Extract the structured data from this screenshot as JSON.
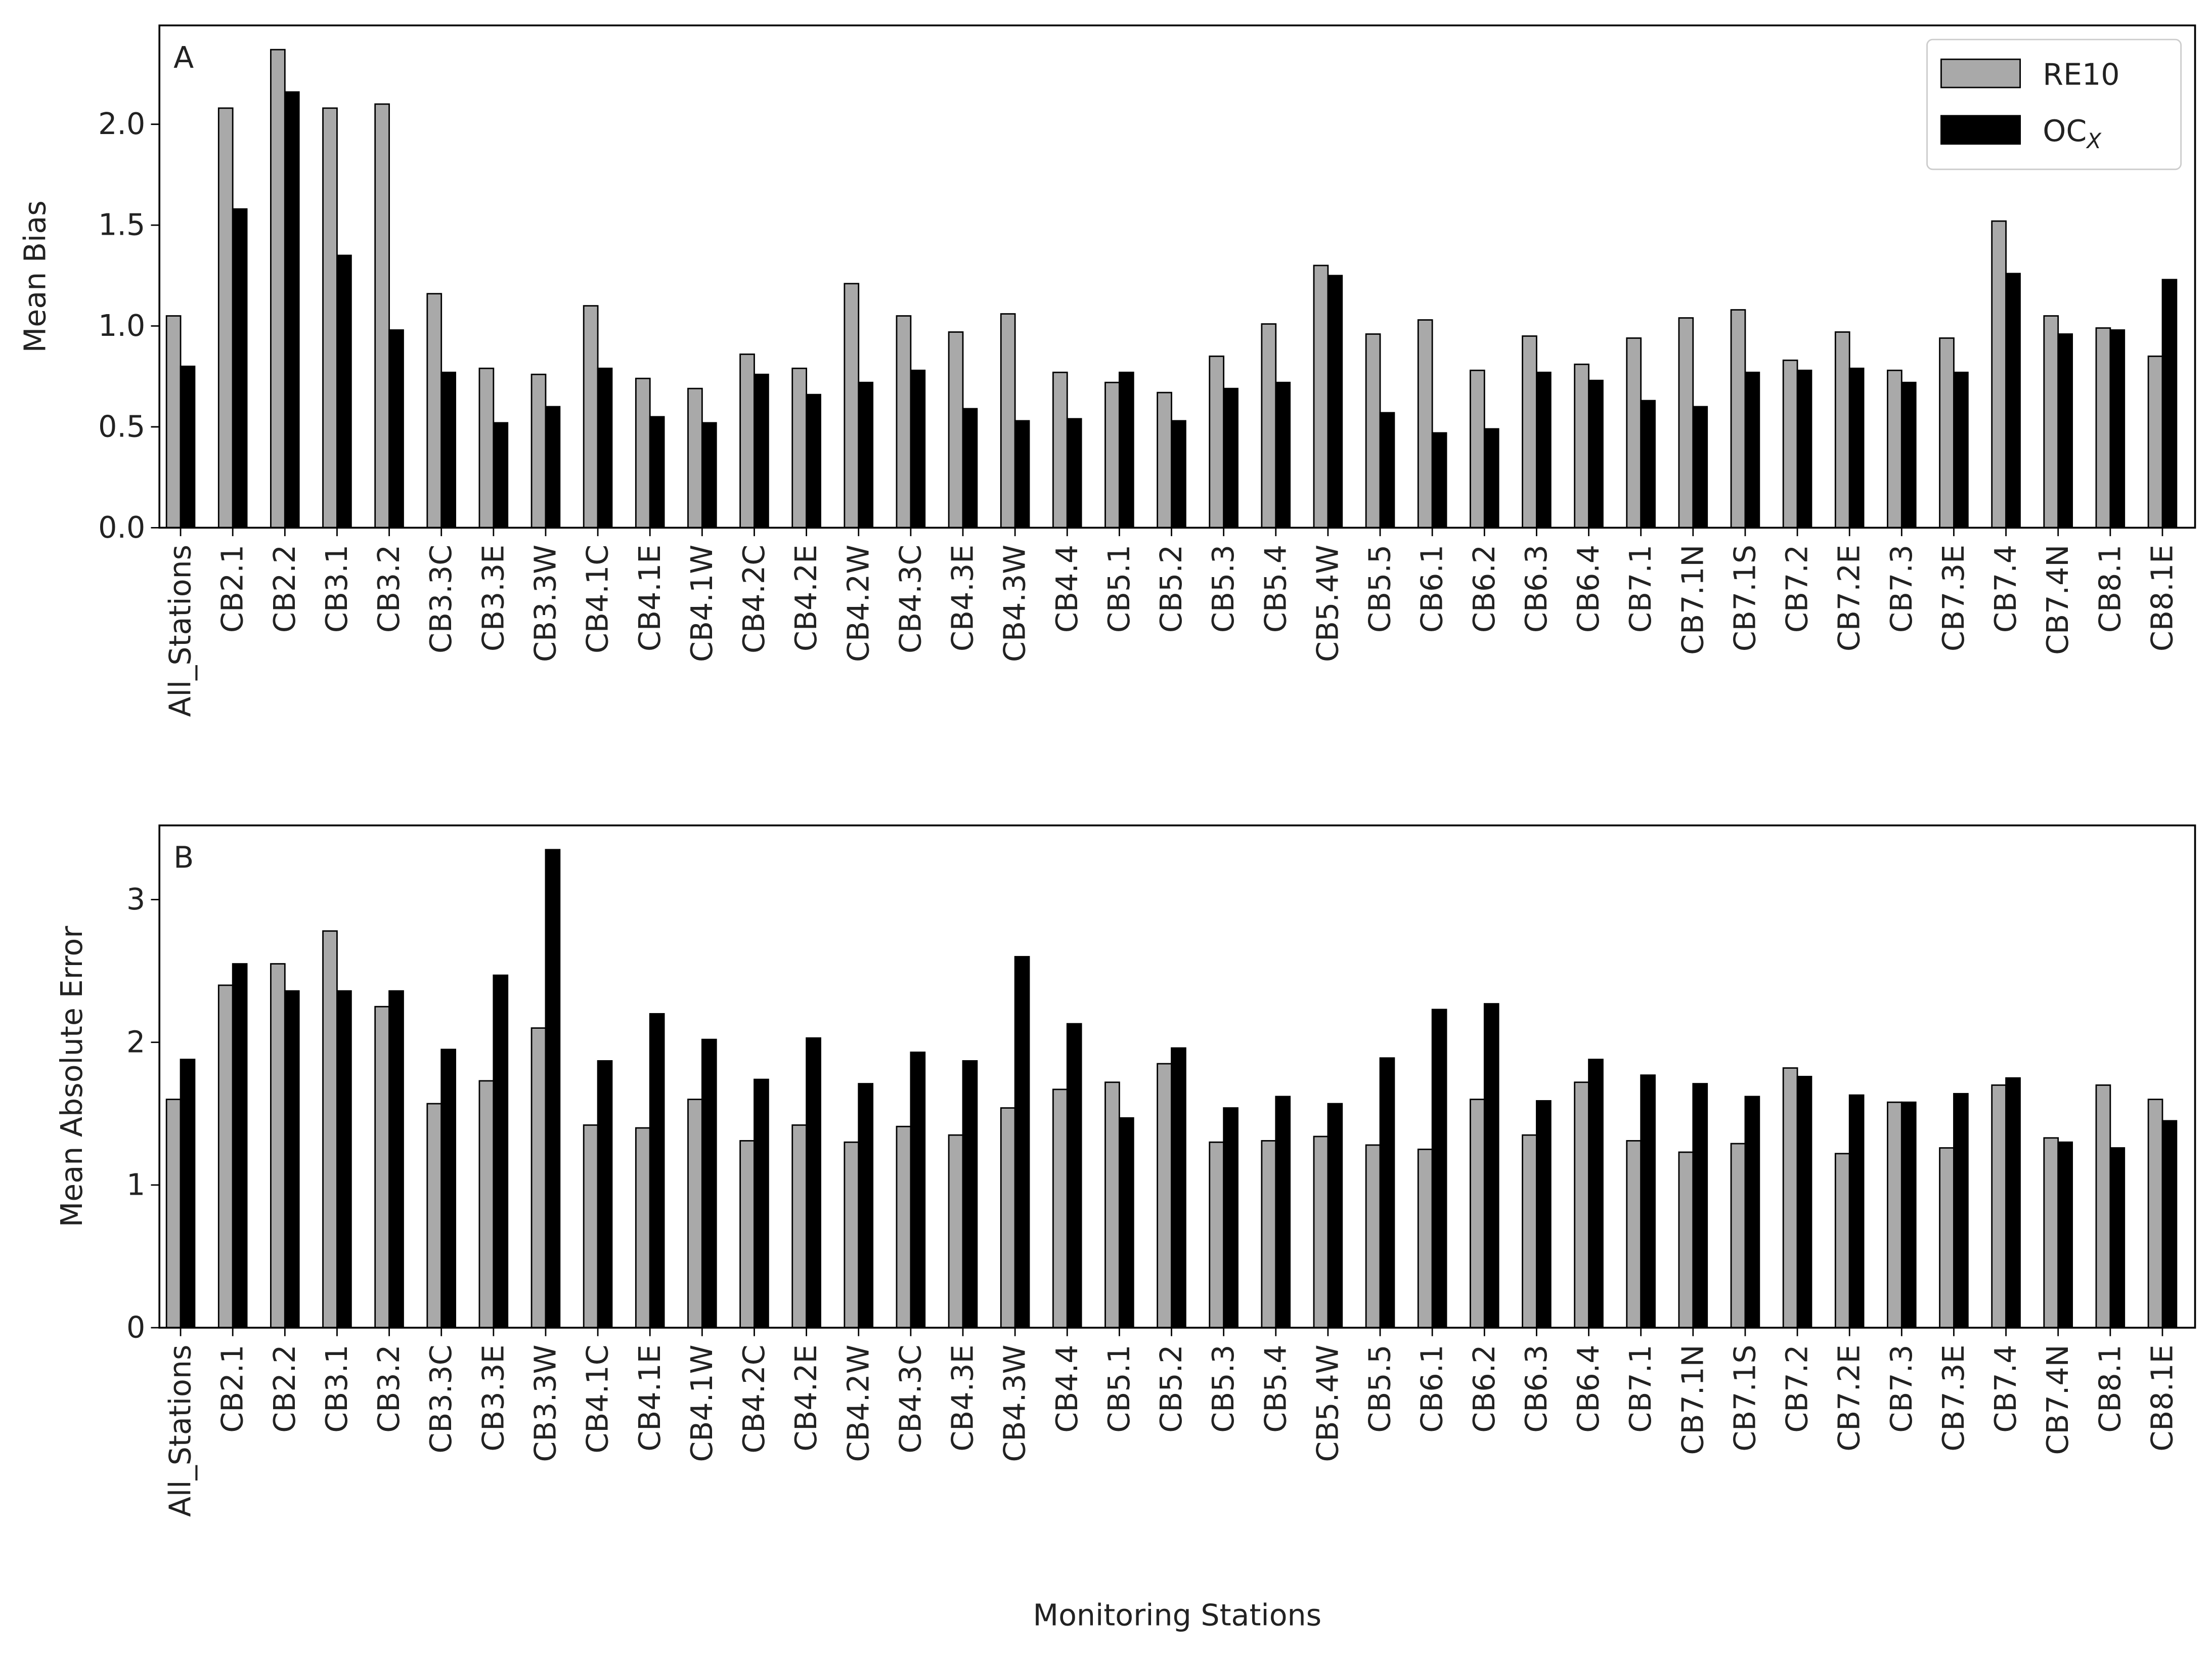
{
  "chart_data": [
    {
      "type": "bar",
      "panel_label": "A",
      "ylabel": "Mean Bias",
      "categories": [
        "All_Stations",
        "CB2.1",
        "CB2.2",
        "CB3.1",
        "CB3.2",
        "CB3.3C",
        "CB3.3E",
        "CB3.3W",
        "CB4.1C",
        "CB4.1E",
        "CB4.1W",
        "CB4.2C",
        "CB4.2E",
        "CB4.2W",
        "CB4.3C",
        "CB4.3E",
        "CB4.3W",
        "CB4.4",
        "CB5.1",
        "CB5.2",
        "CB5.3",
        "CB5.4",
        "CB5.4W",
        "CB5.5",
        "CB6.1",
        "CB6.2",
        "CB6.3",
        "CB6.4",
        "CB7.1",
        "CB7.1N",
        "CB7.1S",
        "CB7.2",
        "CB7.2E",
        "CB7.3",
        "CB7.3E",
        "CB7.4",
        "CB7.4N",
        "CB8.1",
        "CB8.1E"
      ],
      "series": [
        {
          "name": "RE10",
          "color": "#a9a9a9",
          "values": [
            1.05,
            2.08,
            2.37,
            2.08,
            2.1,
            1.16,
            0.79,
            0.76,
            1.1,
            0.74,
            0.69,
            0.86,
            0.79,
            1.21,
            1.05,
            0.97,
            1.06,
            0.77,
            0.72,
            0.67,
            0.85,
            1.01,
            1.3,
            0.96,
            1.03,
            0.78,
            0.95,
            0.81,
            0.94,
            1.04,
            1.08,
            0.83,
            0.97,
            0.78,
            0.94,
            1.52,
            1.05,
            0.99,
            0.85
          ]
        },
        {
          "name": "OCX",
          "color": "#000000",
          "values": [
            0.8,
            1.58,
            2.16,
            1.35,
            0.98,
            0.77,
            0.52,
            0.6,
            0.79,
            0.55,
            0.52,
            0.76,
            0.66,
            0.72,
            0.78,
            0.59,
            0.53,
            0.54,
            0.77,
            0.53,
            0.69,
            0.72,
            1.25,
            0.57,
            0.47,
            0.49,
            0.77,
            0.73,
            0.63,
            0.6,
            0.77,
            0.78,
            0.79,
            0.72,
            0.77,
            1.26,
            0.96,
            0.98,
            1.23
          ]
        }
      ],
      "ylim": [
        0,
        2.49
      ],
      "yticks": [
        {
          "value": 0,
          "label": "0.0"
        },
        0.5,
        {
          "value": 1,
          "label": "1.0"
        },
        1.5,
        {
          "value": 2,
          "label": "2.0"
        }
      ],
      "legend": "upper right"
    },
    {
      "type": "bar",
      "panel_label": "B",
      "ylabel": "Mean Absolute Error",
      "xlabel": "Monitoring Stations",
      "categories": [
        "All_Stations",
        "CB2.1",
        "CB2.2",
        "CB3.1",
        "CB3.2",
        "CB3.3C",
        "CB3.3E",
        "CB3.3W",
        "CB4.1C",
        "CB4.1E",
        "CB4.1W",
        "CB4.2C",
        "CB4.2E",
        "CB4.2W",
        "CB4.3C",
        "CB4.3E",
        "CB4.3W",
        "CB4.4",
        "CB5.1",
        "CB5.2",
        "CB5.3",
        "CB5.4",
        "CB5.4W",
        "CB5.5",
        "CB6.1",
        "CB6.2",
        "CB6.3",
        "CB6.4",
        "CB7.1",
        "CB7.1N",
        "CB7.1S",
        "CB7.2",
        "CB7.2E",
        "CB7.3",
        "CB7.3E",
        "CB7.4",
        "CB7.4N",
        "CB8.1",
        "CB8.1E"
      ],
      "series": [
        {
          "name": "RE10",
          "color": "#a9a9a9",
          "values": [
            1.6,
            2.4,
            2.55,
            2.78,
            2.25,
            1.57,
            1.73,
            2.1,
            1.42,
            1.4,
            1.6,
            1.31,
            1.42,
            1.3,
            1.41,
            1.35,
            1.54,
            1.67,
            1.72,
            1.85,
            1.3,
            1.31,
            1.34,
            1.28,
            1.25,
            1.6,
            1.35,
            1.72,
            1.31,
            1.23,
            1.29,
            1.82,
            1.22,
            1.58,
            1.26,
            1.7,
            1.33,
            1.7,
            1.6
          ]
        },
        {
          "name": "OCX",
          "color": "#000000",
          "values": [
            1.88,
            2.55,
            2.36,
            2.36,
            2.36,
            1.95,
            2.47,
            3.35,
            1.87,
            2.2,
            2.02,
            1.74,
            2.03,
            1.71,
            1.93,
            1.87,
            2.6,
            2.13,
            1.47,
            1.96,
            1.54,
            1.62,
            1.57,
            1.89,
            2.23,
            2.27,
            1.59,
            1.88,
            1.77,
            1.71,
            1.62,
            1.76,
            1.63,
            1.58,
            1.64,
            1.75,
            1.3,
            1.26,
            1.45
          ]
        }
      ],
      "ylim": [
        0,
        3.52
      ],
      "yticks": [
        0,
        1,
        2,
        3
      ]
    }
  ]
}
